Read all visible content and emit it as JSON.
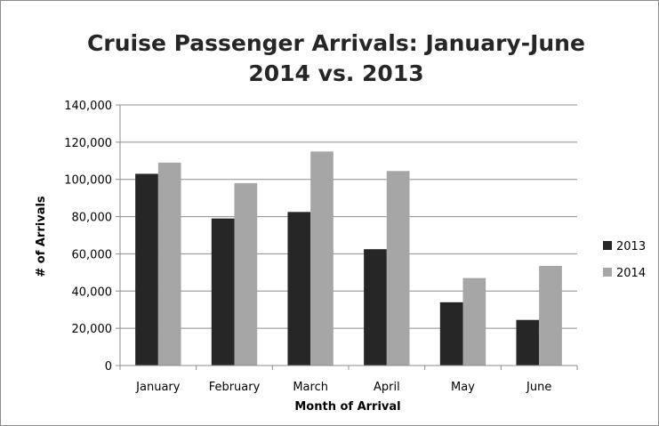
{
  "chart_data": {
    "type": "bar",
    "title": "Cruise Passenger Arrivals: January-June",
    "subtitle": "2014 vs. 2013",
    "xlabel": "Month of Arrival",
    "ylabel": "# of Arrivals",
    "ylim": [
      0,
      140000
    ],
    "ytick_values": [
      0,
      20000,
      40000,
      60000,
      80000,
      100000,
      120000,
      140000
    ],
    "ytick_labels": [
      "0",
      "20,000",
      "40,000",
      "60,000",
      "80,000",
      "100,000",
      "120,000",
      "140,000"
    ],
    "grid": true,
    "legend_position": "right",
    "categories": [
      "January",
      "February",
      "March",
      "April",
      "May",
      "June"
    ],
    "series": [
      {
        "name": "2013",
        "color": "#262626",
        "values": [
          103000,
          79000,
          82500,
          62500,
          34000,
          24500
        ]
      },
      {
        "name": "2014",
        "color": "#a6a6a6",
        "values": [
          109000,
          98000,
          115000,
          104500,
          47000,
          53500
        ]
      }
    ]
  }
}
